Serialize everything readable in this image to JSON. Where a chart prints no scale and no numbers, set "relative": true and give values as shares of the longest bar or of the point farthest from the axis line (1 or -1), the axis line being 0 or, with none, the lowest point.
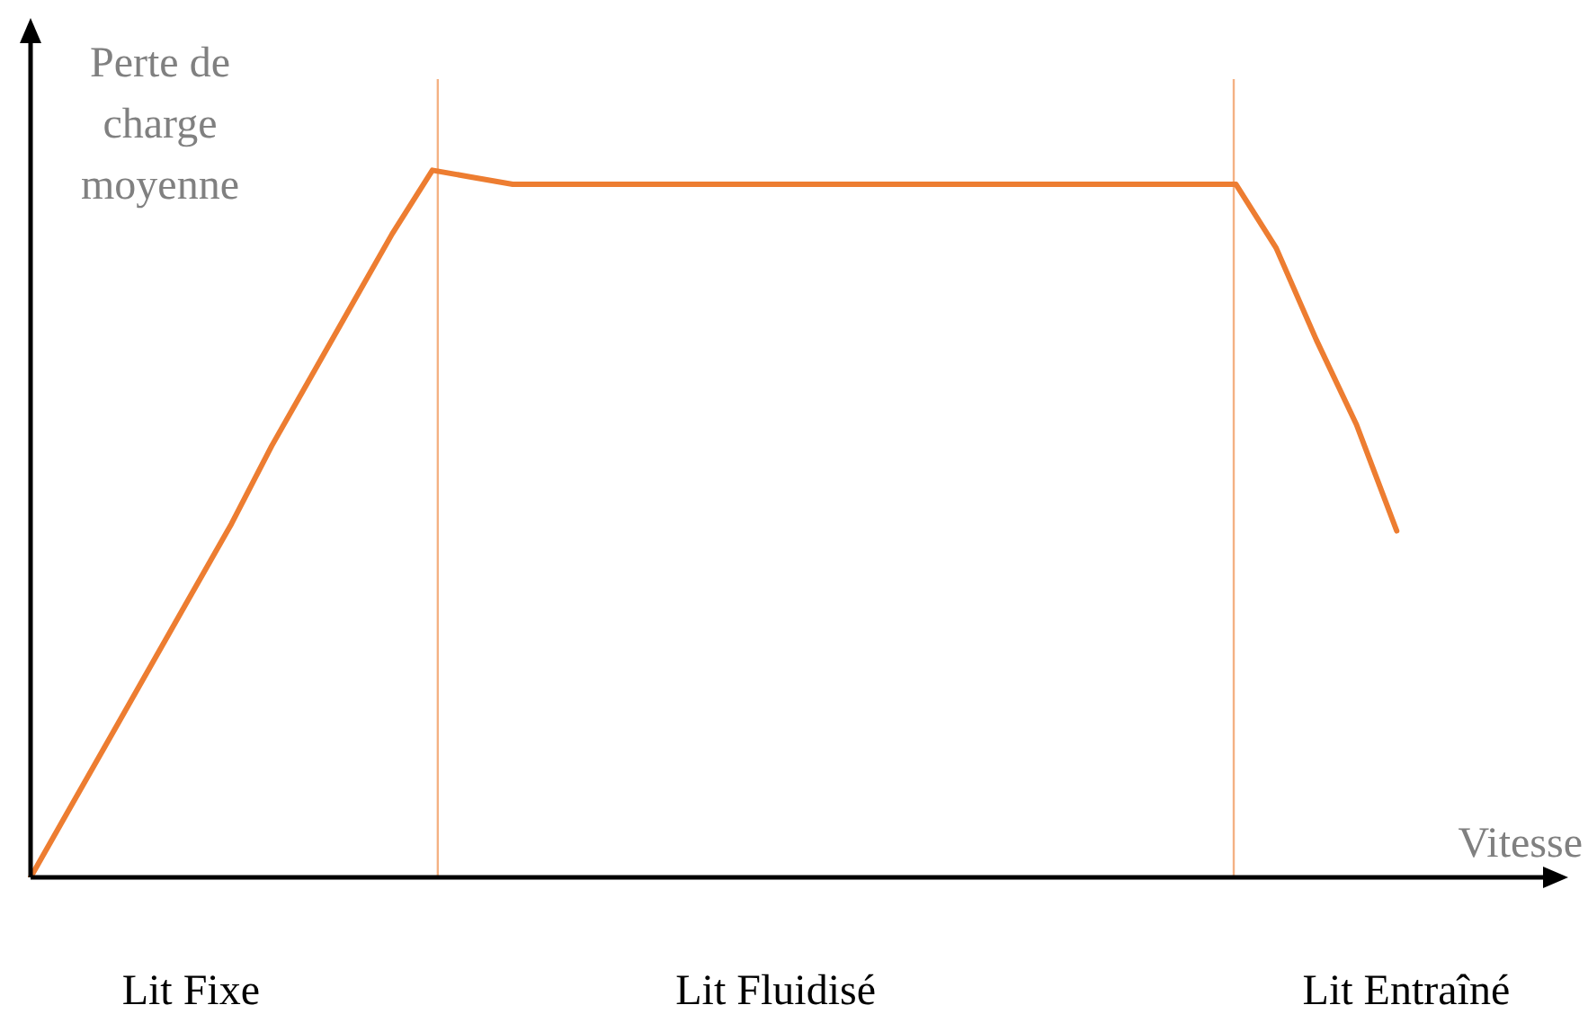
{
  "chart_data": {
    "type": "line",
    "relative": true,
    "xlabel": "Vitesse",
    "ylabel": "Perte de charge moyenne",
    "categories": [
      null,
      null,
      null,
      null,
      null,
      null,
      null,
      null,
      null,
      null,
      null,
      null,
      null,
      null,
      null,
      null,
      null,
      null,
      null,
      null,
      null,
      null,
      null,
      null,
      null,
      null,
      null,
      null,
      null,
      null,
      null,
      null,
      null,
      null,
      null,
      null,
      null,
      null,
      null
    ],
    "grid": false,
    "legend": false,
    "marker": "none",
    "line_style": "solid",
    "series": [
      {
        "color": "#ed7d31",
        "values": [
          0,
          0.1,
          0.2,
          0.3,
          0.4,
          0.5,
          0.61,
          0.71,
          0.81,
          0.91,
          1.0,
          0.99,
          0.98,
          0.98,
          0.98,
          0.98,
          0.98,
          0.98,
          0.98,
          0.98,
          0.98,
          0.98,
          0.98,
          0.98,
          0.98,
          0.98,
          0.98,
          0.98,
          0.98,
          0.98,
          0.98,
          0.89,
          0.76,
          0.64,
          0.49,
          null,
          null,
          null,
          null
        ]
      }
    ],
    "annotations": [
      "Lit Fixe",
      "Lit Fluidisé",
      "Lit Entraîné"
    ]
  }
}
